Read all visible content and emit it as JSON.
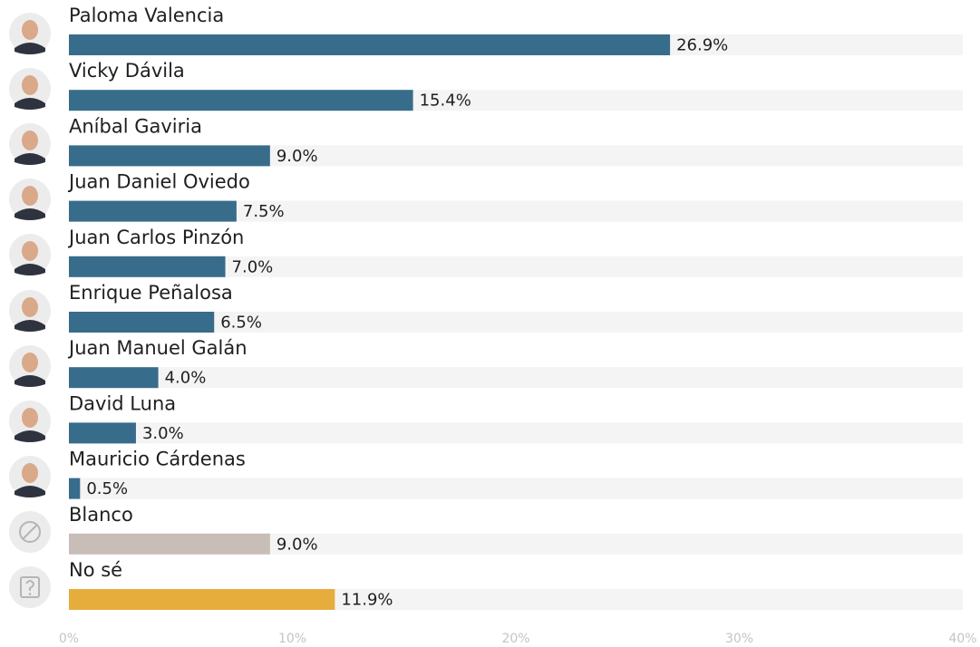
{
  "chart_data": {
    "type": "bar",
    "orientation": "horizontal",
    "categories": [
      "Paloma Valencia",
      "Vicky Dávila",
      "Aníbal Gaviria",
      "Juan Daniel Oviedo",
      "Juan Carlos Pinzón",
      "Enrique Peñalosa",
      "Juan Manuel Galán",
      "David Luna",
      "Mauricio Cárdenas",
      "Blanco",
      "No sé"
    ],
    "values": [
      26.9,
      15.4,
      9.0,
      7.5,
      7.0,
      6.5,
      4.0,
      3.0,
      0.5,
      9.0,
      11.9
    ],
    "value_labels": [
      "26.9%",
      "15.4%",
      "9.0%",
      "7.5%",
      "7.0%",
      "6.5%",
      "4.0%",
      "3.0%",
      "0.5%",
      "9.0%",
      "11.9%"
    ],
    "colors": [
      "#386c8b",
      "#386c8b",
      "#386c8b",
      "#386c8b",
      "#386c8b",
      "#386c8b",
      "#386c8b",
      "#386c8b",
      "#386c8b",
      "#c8beb7",
      "#e6ac3c"
    ],
    "xlim": [
      0,
      40
    ],
    "xticks": [
      {
        "value": 0,
        "label": "0%"
      },
      {
        "value": 10,
        "label": "10%"
      },
      {
        "value": 20,
        "label": "20%"
      },
      {
        "value": 30,
        "label": "30%"
      },
      {
        "value": 40,
        "label": "40%"
      }
    ],
    "grid": false
  }
}
